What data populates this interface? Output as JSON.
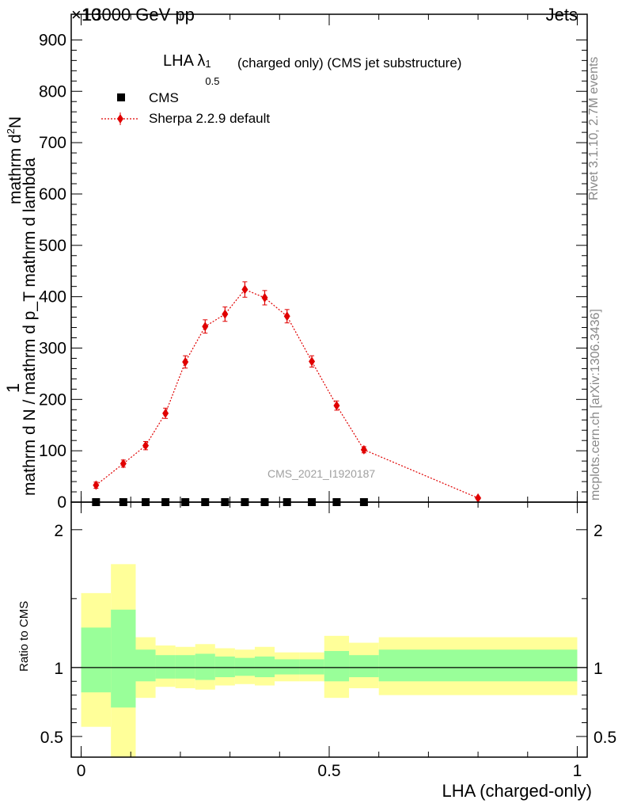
{
  "header": {
    "left": "13000 GeV pp",
    "right": "Jets",
    "exponent_label": "×10"
  },
  "title": {
    "main": "LHA λ",
    "sup": "1",
    "sub": "0.5",
    "rest": "(charged only) (CMS jet substructure)"
  },
  "legend": {
    "cms": "CMS",
    "mc": "Sherpa 2.2.9 default"
  },
  "watermark": "CMS_2021_I1920187",
  "side_labels": {
    "rivet": "Rivet 3.1.10,  2.7M events",
    "mcplots": "mcplots.cern.ch [arXiv:1306.3436]"
  },
  "y_axis_label": {
    "prefix": "1",
    "numerator": "mathrm d N / mathrm d p",
    "numerator_sub": "T",
    "denominator_text": "mathrm d",
    "denominator_sup": "2",
    "denominator_rest": "N",
    "full_num": "mathrm d",
    "left_label": "mathrm d N / mathrm d p_T mathrm d lambda"
  },
  "ratio_ylabel": "Ratio to CMS",
  "x_axis_label": "LHA (charged-only)",
  "colors": {
    "mc": "#e00000",
    "band_inner": "#99ff99",
    "band_outer": "#ffff99",
    "data": "#000000"
  },
  "chart_data": [
    {
      "type": "scatter",
      "ylim": [
        0,
        950
      ],
      "xlim": [
        -0.02,
        1.02
      ],
      "y_scale_factor_label": "×10",
      "yticks": [
        0,
        100,
        200,
        300,
        400,
        500,
        600,
        700,
        800,
        900
      ],
      "xticks": [
        0,
        0.5,
        1
      ],
      "series": [
        {
          "name": "CMS",
          "x": [
            0.03,
            0.085,
            0.13,
            0.17,
            0.21,
            0.25,
            0.29,
            0.33,
            0.37,
            0.415,
            0.465,
            0.515,
            0.57
          ],
          "y": [
            0,
            0,
            0,
            0,
            0,
            0,
            0,
            0,
            0,
            0,
            0,
            0,
            0
          ]
        },
        {
          "name": "Sherpa 2.2.9 default",
          "x": [
            0.03,
            0.085,
            0.13,
            0.17,
            0.21,
            0.25,
            0.29,
            0.33,
            0.37,
            0.415,
            0.465,
            0.515,
            0.57,
            0.8
          ],
          "y": [
            33,
            75,
            110,
            173,
            273,
            342,
            366,
            414,
            398,
            362,
            274,
            188,
            102,
            8
          ],
          "err": [
            6,
            7,
            8,
            10,
            12,
            13,
            14,
            15,
            14,
            13,
            11,
            9,
            6,
            2
          ]
        }
      ]
    },
    {
      "type": "area",
      "ylabel": "Ratio to CMS",
      "xlabel": "LHA (charged-only)",
      "ylim": [
        0.35,
        2.2
      ],
      "yticks": [
        0.5,
        1,
        2
      ],
      "ytick_labels": [
        "0.5",
        "1",
        "2"
      ],
      "xticks": [
        0,
        0.5,
        1
      ],
      "xtick_labels": [
        "0",
        "0.5",
        "1"
      ],
      "bins": [
        {
          "lo": 0.0,
          "hi": 0.06,
          "inner": [
            0.82,
            1.29
          ],
          "outer": [
            0.57,
            1.54
          ]
        },
        {
          "lo": 0.06,
          "hi": 0.11,
          "inner": [
            0.71,
            1.42
          ],
          "outer": [
            0.3,
            1.75
          ]
        },
        {
          "lo": 0.11,
          "hi": 0.15,
          "inner": [
            0.9,
            1.13
          ],
          "outer": [
            0.78,
            1.22
          ]
        },
        {
          "lo": 0.15,
          "hi": 0.19,
          "inner": [
            0.92,
            1.09
          ],
          "outer": [
            0.86,
            1.16
          ]
        },
        {
          "lo": 0.19,
          "hi": 0.23,
          "inner": [
            0.92,
            1.09
          ],
          "outer": [
            0.85,
            1.15
          ]
        },
        {
          "lo": 0.23,
          "hi": 0.27,
          "inner": [
            0.91,
            1.1
          ],
          "outer": [
            0.84,
            1.17
          ]
        },
        {
          "lo": 0.27,
          "hi": 0.31,
          "inner": [
            0.93,
            1.08
          ],
          "outer": [
            0.87,
            1.14
          ]
        },
        {
          "lo": 0.31,
          "hi": 0.35,
          "inner": [
            0.94,
            1.07
          ],
          "outer": [
            0.88,
            1.13
          ]
        },
        {
          "lo": 0.35,
          "hi": 0.39,
          "inner": [
            0.93,
            1.08
          ],
          "outer": [
            0.87,
            1.15
          ]
        },
        {
          "lo": 0.39,
          "hi": 0.44,
          "inner": [
            0.95,
            1.06
          ],
          "outer": [
            0.9,
            1.11
          ]
        },
        {
          "lo": 0.44,
          "hi": 0.49,
          "inner": [
            0.95,
            1.06
          ],
          "outer": [
            0.9,
            1.11
          ]
        },
        {
          "lo": 0.49,
          "hi": 0.54,
          "inner": [
            0.9,
            1.12
          ],
          "outer": [
            0.78,
            1.23
          ]
        },
        {
          "lo": 0.54,
          "hi": 0.6,
          "inner": [
            0.93,
            1.09
          ],
          "outer": [
            0.85,
            1.18
          ]
        },
        {
          "lo": 0.6,
          "hi": 1.0,
          "inner": [
            0.9,
            1.13
          ],
          "outer": [
            0.8,
            1.22
          ]
        }
      ],
      "reference_line": 1
    }
  ]
}
